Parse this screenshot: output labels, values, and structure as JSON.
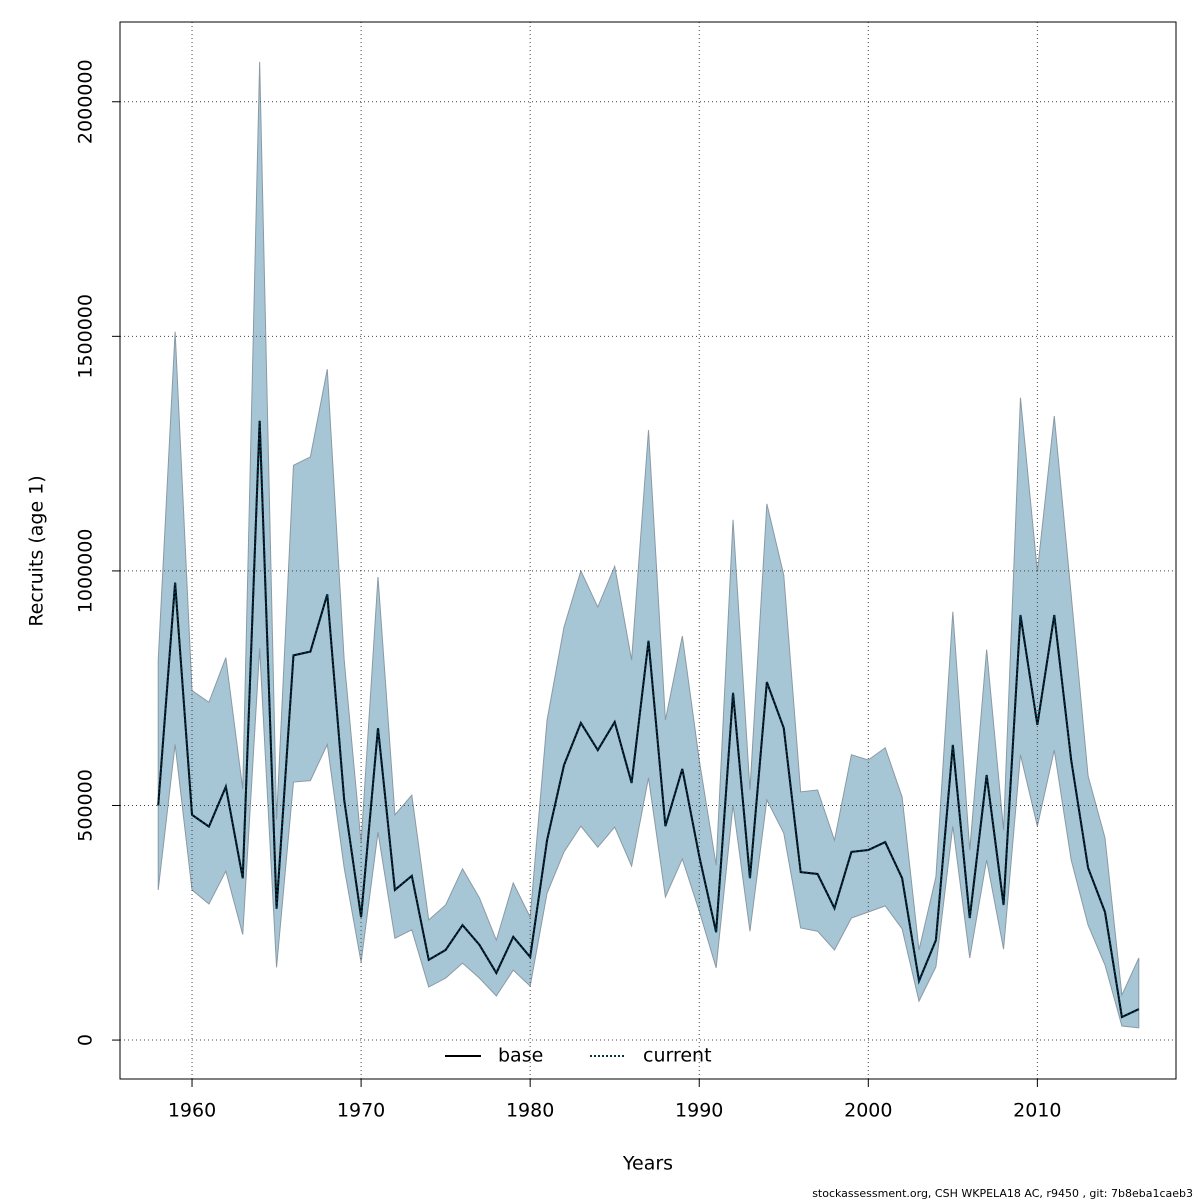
{
  "chart_data": {
    "type": "line",
    "xlabel": "Years",
    "ylabel": "Recruits (age 1)",
    "caption": "stockassessment.org, CSH  WKPELA18 AC, r9450 , git: 7b8eba1caeb3",
    "x": [
      1958,
      1959,
      1960,
      1961,
      1962,
      1963,
      1964,
      1965,
      1966,
      1967,
      1968,
      1969,
      1970,
      1971,
      1972,
      1973,
      1974,
      1975,
      1976,
      1977,
      1978,
      1979,
      1980,
      1981,
      1982,
      1983,
      1984,
      1985,
      1986,
      1987,
      1988,
      1989,
      1990,
      1991,
      1992,
      1993,
      1994,
      1995,
      1996,
      1997,
      1998,
      1999,
      2000,
      2001,
      2002,
      2003,
      2004,
      2005,
      2006,
      2007,
      2008,
      2009,
      2010,
      2011,
      2012,
      2013,
      2014,
      2015,
      2016
    ],
    "series": [
      {
        "name": "base",
        "color": "#000000",
        "dash": "solid",
        "values": [
          500000,
          975000,
          480000,
          455000,
          540000,
          345000,
          1320000,
          280000,
          820000,
          828000,
          950000,
          512000,
          262000,
          665000,
          320000,
          350000,
          171000,
          192000,
          245000,
          203000,
          143000,
          220000,
          177000,
          426000,
          586000,
          676000,
          618000,
          678000,
          548000,
          851000,
          456000,
          578000,
          392000,
          230000,
          740000,
          345000,
          763000,
          665000,
          358000,
          354000,
          281000,
          401000,
          405000,
          422000,
          345000,
          126000,
          213000,
          629000,
          260000,
          565000,
          288000,
          906000,
          672000,
          906000,
          597000,
          367000,
          273000,
          49000,
          66000
        ]
      },
      {
        "name": "current",
        "color": "#00334d",
        "dash": "dotted",
        "values": [
          500000,
          975000,
          480000,
          455000,
          540000,
          345000,
          1320000,
          280000,
          820000,
          828000,
          950000,
          512000,
          262000,
          665000,
          320000,
          350000,
          171000,
          192000,
          245000,
          203000,
          143000,
          220000,
          177000,
          426000,
          586000,
          676000,
          618000,
          678000,
          548000,
          851000,
          456000,
          578000,
          392000,
          230000,
          740000,
          345000,
          763000,
          665000,
          358000,
          354000,
          281000,
          401000,
          405000,
          422000,
          345000,
          126000,
          213000,
          629000,
          260000,
          565000,
          288000,
          906000,
          672000,
          906000,
          597000,
          367000,
          273000,
          49000,
          66000
        ]
      }
    ],
    "band": {
      "color": "#a6c5d5",
      "lower": [
        320000,
        630000,
        320000,
        290000,
        360000,
        225000,
        835000,
        155000,
        550000,
        553000,
        630000,
        367000,
        166000,
        443000,
        217000,
        235000,
        113000,
        132000,
        164000,
        132000,
        94000,
        149000,
        115000,
        313000,
        401000,
        456000,
        411000,
        454000,
        371000,
        559000,
        305000,
        386000,
        275000,
        154000,
        501000,
        232000,
        512000,
        441000,
        239000,
        232000,
        192000,
        260000,
        273000,
        286000,
        237000,
        83000,
        156000,
        456000,
        175000,
        384000,
        194000,
        608000,
        456000,
        618000,
        384000,
        245000,
        160000,
        30000,
        26000
      ],
      "upper": [
        810000,
        1510000,
        745000,
        720000,
        815000,
        535000,
        2085000,
        470000,
        1225000,
        1243000,
        1430000,
        810000,
        420000,
        987000,
        480000,
        522000,
        256000,
        288000,
        365000,
        303000,
        213000,
        335000,
        262000,
        682000,
        880000,
        1000000,
        923000,
        1010000,
        810000,
        1300000,
        682000,
        861000,
        597000,
        373000,
        1109000,
        533000,
        1143000,
        991000,
        529000,
        533000,
        426000,
        608000,
        597000,
        623000,
        518000,
        192000,
        348000,
        913000,
        405000,
        832000,
        448000,
        1369000,
        998000,
        1330000,
        949000,
        563000,
        431000,
        96000,
        175000
      ]
    },
    "xlim": [
      1955.74,
      2018.2
    ],
    "ylim": [
      -83000,
      2170000
    ],
    "xticks": [
      1960,
      1970,
      1980,
      1990,
      2000,
      2010
    ],
    "yticks": [
      0,
      500000,
      1000000,
      1500000,
      2000000
    ],
    "grid": true,
    "legend": "bottom"
  }
}
